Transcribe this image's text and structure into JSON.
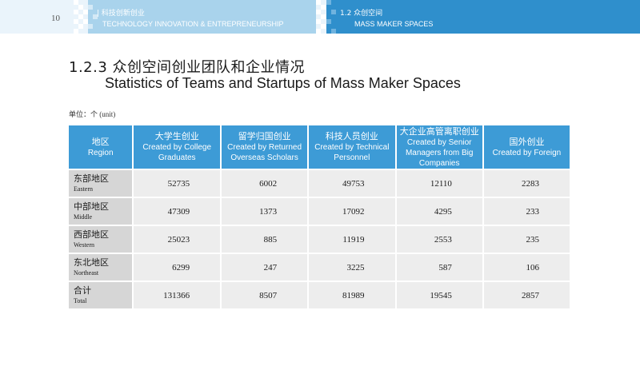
{
  "header": {
    "page_number": "10",
    "section_zh": "| 科技创新创业",
    "section_en": "TECHNOLOGY INNOVATION & ENTREPRENEURSHIP",
    "subsection_zh": "1.2 众创空间",
    "subsection_en": "MASS MAKER SPACES",
    "colors": {
      "light_band": "#a9d3ec",
      "dark_band": "#2f8fcc",
      "table_header": "#3d9bd6"
    }
  },
  "title": {
    "zh": "1.2.3 众创空间创业团队和企业情况",
    "en": "Statistics of Teams and Startups of Mass Maker Spaces"
  },
  "unit_label": "单位：个  (unit)",
  "table": {
    "headers": [
      {
        "zh": "地区",
        "en": "Region"
      },
      {
        "zh": "大学生创业",
        "en": "Created by College Graduates"
      },
      {
        "zh": "留学归国创业",
        "en": "Created by Returned Overseas Scholars"
      },
      {
        "zh": "科技人员创业",
        "en": "Created by Technical Personnel"
      },
      {
        "zh": "大企业高管离职创业",
        "en": "Created by Senior Managers from Big Companies"
      },
      {
        "zh": "国外创业",
        "en": "Created by Foreign"
      }
    ],
    "rows": [
      {
        "region_zh": "东部地区",
        "region_en": "Eastern",
        "values": [
          "52735",
          "6002",
          "49753",
          "12110",
          "2283"
        ]
      },
      {
        "region_zh": "中部地区",
        "region_en": "Middle",
        "values": [
          "47309",
          "1373",
          "17092",
          "4295",
          "233"
        ]
      },
      {
        "region_zh": "西部地区",
        "region_en": "Western",
        "values": [
          "25023",
          "885",
          "11919",
          "2553",
          "235"
        ]
      },
      {
        "region_zh": "东北地区",
        "region_en": "Northeast",
        "values": [
          "6299",
          "247",
          "3225",
          "587",
          "106"
        ]
      },
      {
        "region_zh": "合计",
        "region_en": "Total",
        "values": [
          "131366",
          "8507",
          "81989",
          "19545",
          "2857"
        ]
      }
    ]
  }
}
